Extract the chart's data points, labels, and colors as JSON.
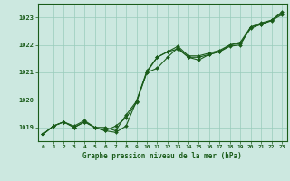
{
  "xlabel": "Graphe pression niveau de la mer (hPa)",
  "bg_color": "#cce8e0",
  "line_color": "#1a5c1a",
  "grid_color": "#99ccbb",
  "xlim": [
    -0.5,
    23.5
  ],
  "ylim": [
    1018.5,
    1023.5
  ],
  "yticks": [
    1019,
    1020,
    1021,
    1022,
    1023
  ],
  "xticks": [
    0,
    1,
    2,
    3,
    4,
    5,
    6,
    7,
    8,
    9,
    10,
    11,
    12,
    13,
    14,
    15,
    16,
    17,
    18,
    19,
    20,
    21,
    22,
    23
  ],
  "series1_x": [
    0,
    1,
    2,
    3,
    4,
    5,
    6,
    7,
    8,
    9,
    10,
    11,
    12,
    13,
    14,
    15,
    16,
    17,
    18,
    19,
    20,
    21,
    22,
    23
  ],
  "series1_y": [
    1018.75,
    1019.05,
    1019.2,
    1019.0,
    1019.2,
    1019.0,
    1018.88,
    1018.82,
    1019.05,
    1019.95,
    1021.05,
    1021.55,
    1021.75,
    1021.85,
    1021.55,
    1021.45,
    1021.65,
    1021.75,
    1021.95,
    1022.0,
    1022.65,
    1022.75,
    1022.9,
    1023.2
  ],
  "series2_x": [
    0,
    1,
    2,
    3,
    4,
    5,
    6,
    7,
    8,
    9,
    10,
    11,
    12,
    13,
    14,
    15,
    16,
    17,
    18,
    19,
    20,
    21,
    22,
    23
  ],
  "series2_y": [
    1018.75,
    1019.05,
    1019.2,
    1019.0,
    1019.2,
    1019.0,
    1018.88,
    1019.05,
    1019.35,
    1019.9,
    1021.0,
    1021.15,
    1021.55,
    1021.9,
    1021.55,
    1021.55,
    1021.65,
    1021.75,
    1022.0,
    1022.05,
    1022.6,
    1022.75,
    1022.88,
    1023.1
  ],
  "series3_x": [
    0,
    1,
    2,
    3,
    4,
    5,
    6,
    7,
    8,
    9,
    10,
    11,
    12,
    13,
    14,
    15,
    16,
    17,
    18,
    19,
    20,
    21,
    22,
    23
  ],
  "series3_y": [
    1018.75,
    1019.05,
    1019.2,
    1019.05,
    1019.25,
    1019.0,
    1019.0,
    1018.88,
    1019.45,
    1019.95,
    1021.0,
    1021.55,
    1021.75,
    1021.95,
    1021.6,
    1021.6,
    1021.7,
    1021.8,
    1022.0,
    1022.1,
    1022.65,
    1022.8,
    1022.9,
    1023.15
  ]
}
